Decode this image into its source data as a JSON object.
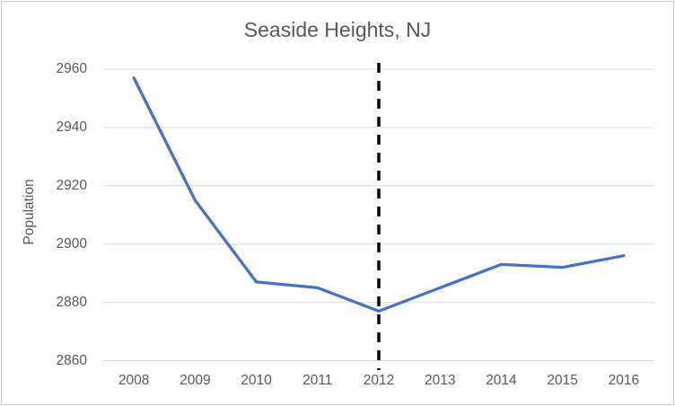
{
  "chart_data": {
    "type": "line",
    "title": "Seaside Heights, NJ",
    "ylabel": "Population",
    "xlabel": "",
    "categories": [
      "2008",
      "2009",
      "2010",
      "2011",
      "2012",
      "2013",
      "2014",
      "2015",
      "2016"
    ],
    "series": [
      {
        "name": "Population",
        "values": [
          2957,
          2915,
          2887,
          2885,
          2877,
          2885,
          2893,
          2892,
          2896
        ]
      }
    ],
    "y_ticks": [
      2860,
      2880,
      2900,
      2920,
      2940,
      2960
    ],
    "ylim": [
      2860,
      2960
    ],
    "grid": true,
    "legend": "none",
    "annotation": {
      "type": "vertical-dashed-line",
      "at_category": "2012"
    },
    "colors": {
      "line": "#4472C4",
      "grid": "#D9D9D9",
      "text": "#595959",
      "annotation": "#000000",
      "background": "#FFFFFF",
      "border": "#C9C9C9"
    }
  }
}
